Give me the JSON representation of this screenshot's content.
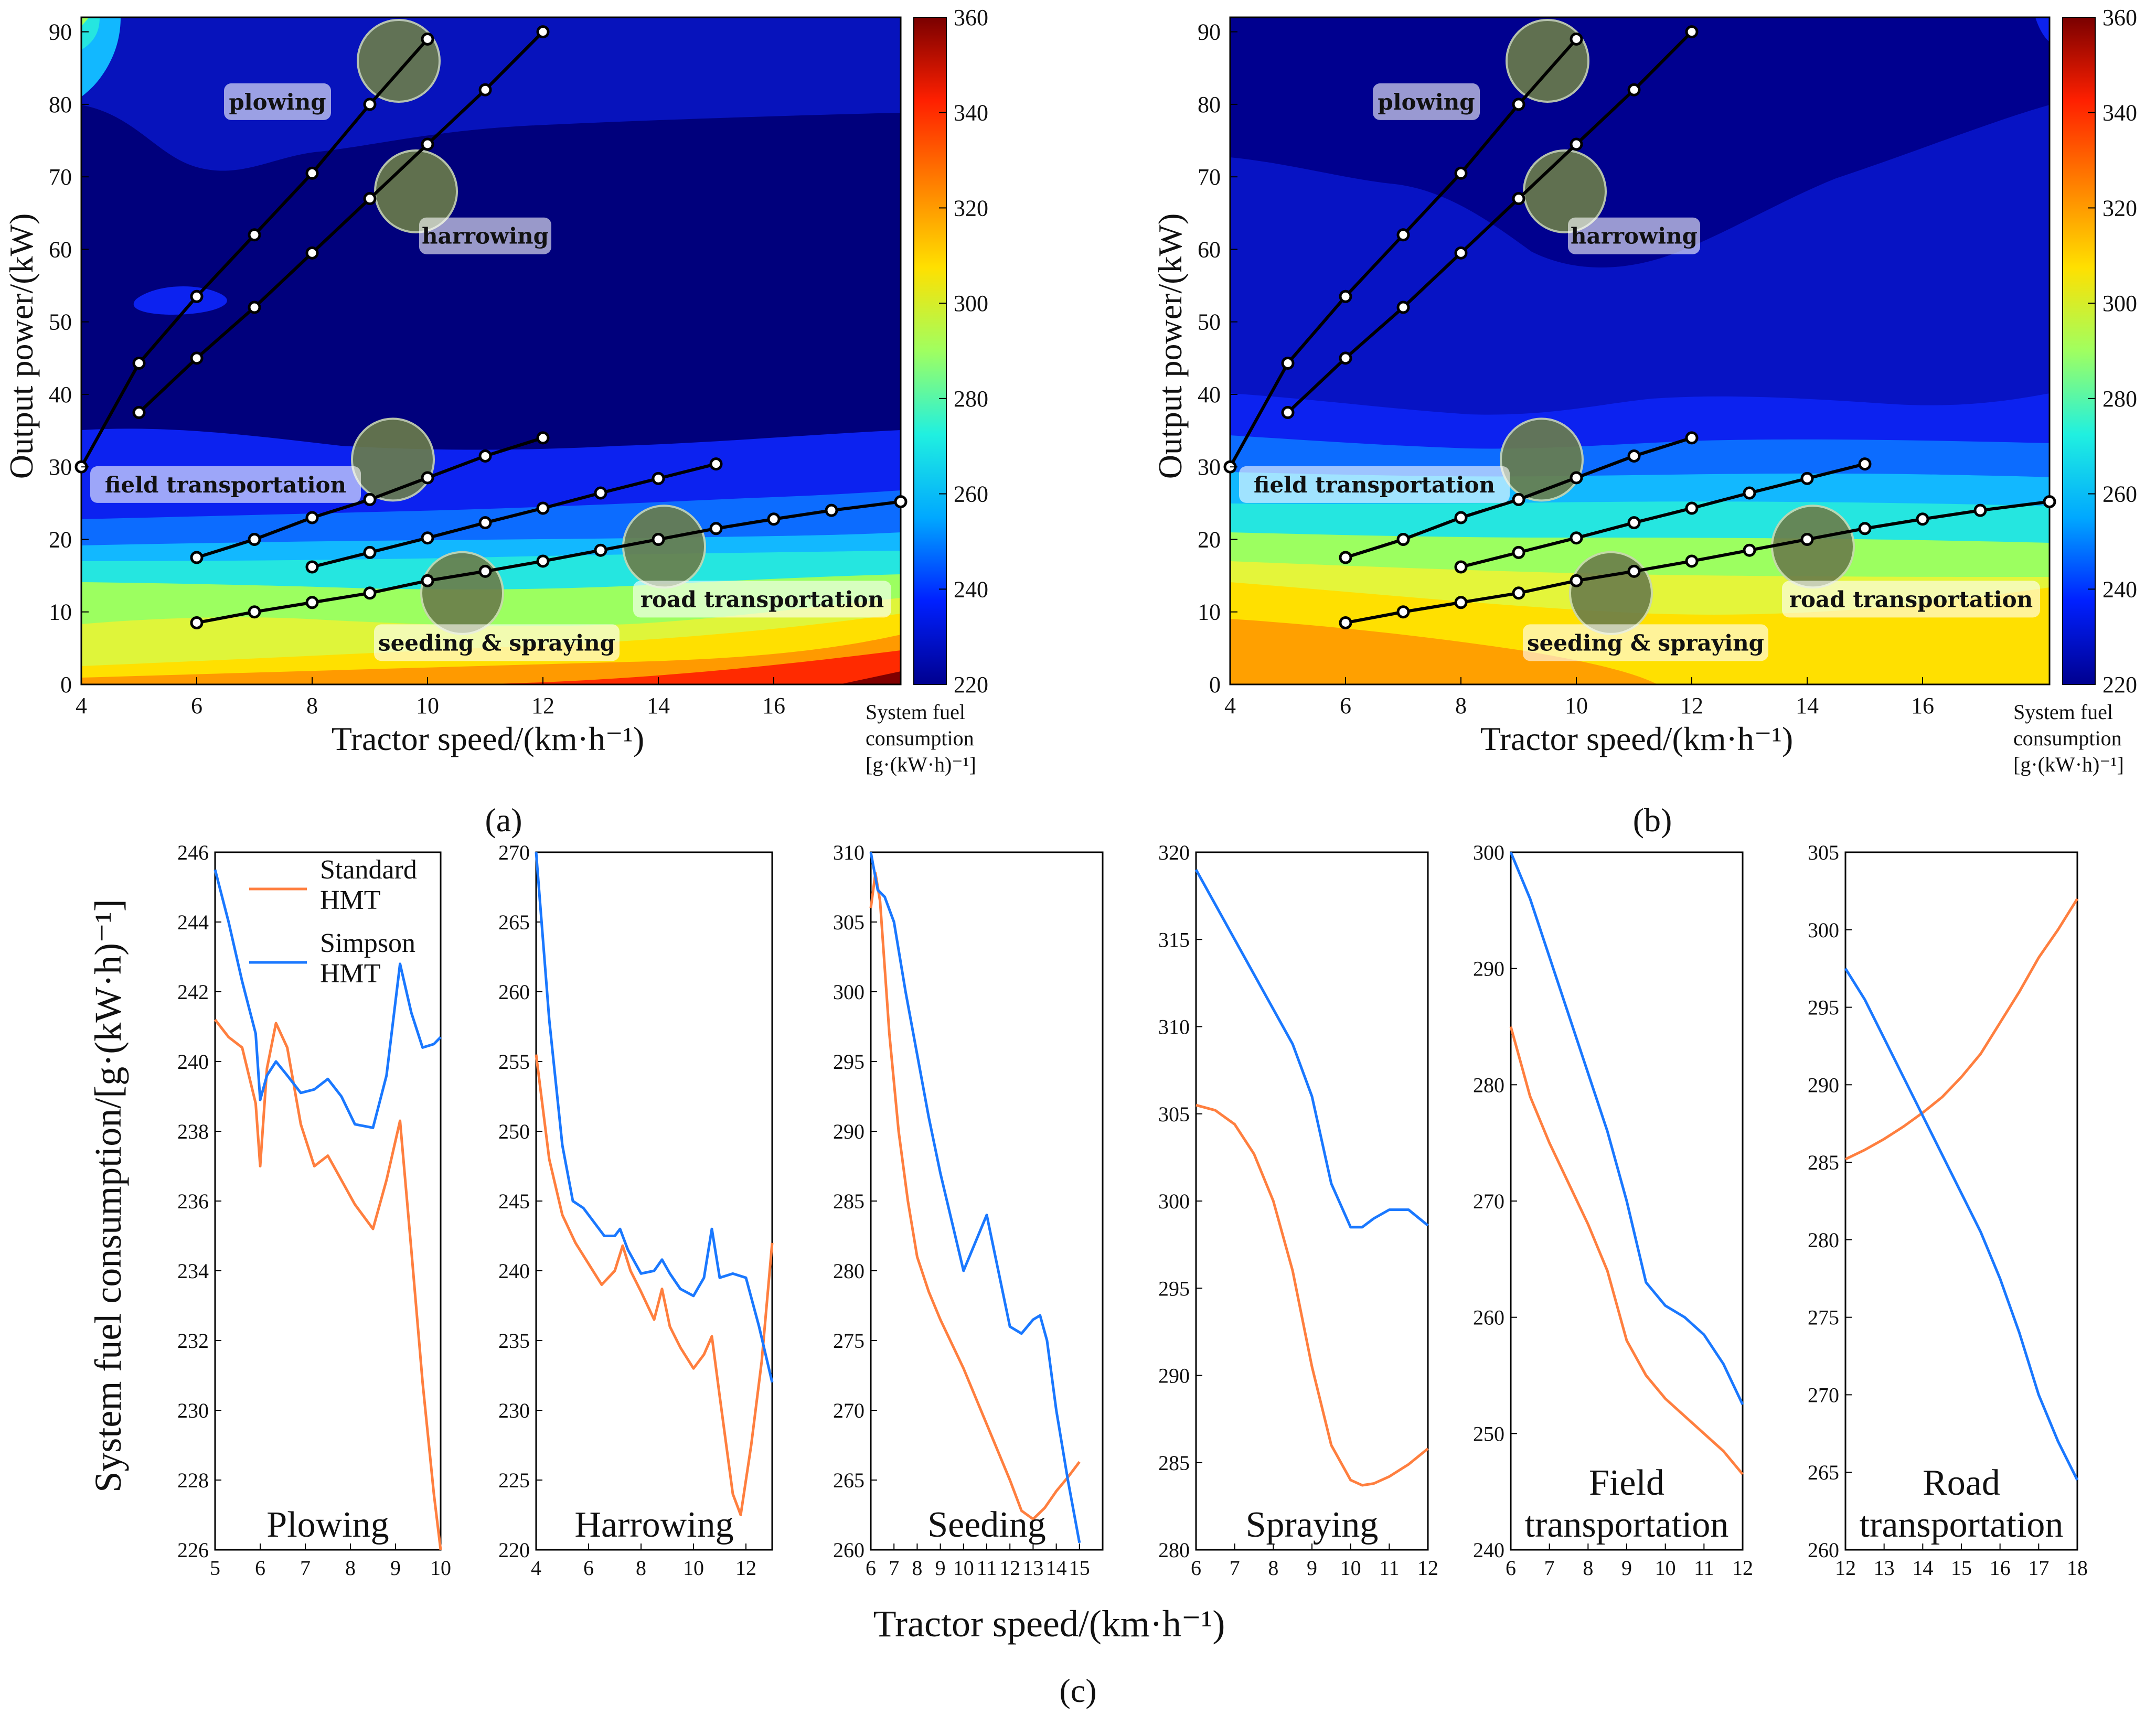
{
  "colorbar": {
    "ticks": [
      "220",
      "240",
      "260",
      "280",
      "300",
      "320",
      "340",
      "360"
    ],
    "title_lines": [
      "System fuel",
      "consumption",
      "[g·(kW·h)⁻¹]"
    ],
    "colors": [
      "#00008f",
      "#0020ff",
      "#00a8ff",
      "#20f0e0",
      "#a0ff60",
      "#ffe000",
      "#ff8000",
      "#ff2000",
      "#7a0000"
    ]
  },
  "panel_labels": {
    "a": "(a)",
    "b": "(b)",
    "c": "(c)"
  },
  "contour_plots": [
    {
      "id": "a",
      "xlabel": "Tractor speed/(km·h⁻¹)",
      "ylabel": "Output power/(kW)",
      "xticks": [
        "4",
        "6",
        "8",
        "10",
        "12",
        "14",
        "16"
      ],
      "yticks": [
        "0",
        "10",
        "20",
        "30",
        "40",
        "50",
        "60",
        "70",
        "80",
        "90"
      ],
      "xlim": [
        4,
        18.2
      ],
      "ylim": [
        0,
        92
      ],
      "field_levels": [
        "#00007c",
        "#0c22f0",
        "#0c6cff",
        "#12b8ff",
        "#25e6e0",
        "#9cff60",
        "#dff53a",
        "#ffe000",
        "#ff9a00",
        "#ff2a00",
        "#800000"
      ]
    },
    {
      "id": "b",
      "xlabel": "Tractor speed/(km·h⁻¹)",
      "ylabel": "Output power/(kW)",
      "xticks": [
        "4",
        "6",
        "8",
        "10",
        "12",
        "14",
        "16"
      ],
      "yticks": [
        "0",
        "10",
        "20",
        "30",
        "40",
        "50",
        "60",
        "70",
        "80",
        "90"
      ],
      "xlim": [
        4,
        18.2
      ],
      "ylim": [
        0,
        92
      ],
      "field_levels": [
        "#00008f",
        "#0c22f0",
        "#0c6cff",
        "#12b8ff",
        "#25e6e0",
        "#9cff60",
        "#e4f53a",
        "#ffe000",
        "#ffa000"
      ]
    }
  ],
  "operations": [
    {
      "name": "plowing",
      "points": [
        [
          4,
          30
        ],
        [
          5,
          44.3
        ],
        [
          6,
          53.5
        ],
        [
          7,
          62
        ],
        [
          8,
          70.5
        ],
        [
          9,
          80
        ],
        [
          10,
          89
        ]
      ]
    },
    {
      "name": "harrowing",
      "points": [
        [
          5,
          37.5
        ],
        [
          6,
          45
        ],
        [
          7,
          52
        ],
        [
          8,
          59.5
        ],
        [
          9,
          67
        ],
        [
          10,
          74.5
        ],
        [
          11,
          82
        ],
        [
          12,
          90
        ]
      ]
    },
    {
      "name": "field transportation",
      "points": [
        [
          6,
          17.5
        ],
        [
          7,
          20
        ],
        [
          8,
          23
        ],
        [
          9,
          25.5
        ],
        [
          10,
          28.5
        ],
        [
          11,
          31.5
        ],
        [
          12,
          34
        ]
      ]
    },
    {
      "name": "seeding & spraying",
      "points": [
        [
          8,
          16.2
        ],
        [
          9,
          18.2
        ],
        [
          10,
          20.2
        ],
        [
          11,
          22.3
        ],
        [
          12,
          24.3
        ],
        [
          13,
          26.4
        ],
        [
          14,
          28.4
        ],
        [
          15,
          30.4
        ]
      ]
    },
    {
      "name": "road transportation",
      "points": [
        [
          6,
          8.5
        ],
        [
          7,
          10
        ],
        [
          8,
          11.3
        ],
        [
          9,
          12.6
        ],
        [
          10,
          14.3
        ],
        [
          11,
          15.6
        ],
        [
          12,
          17
        ],
        [
          13,
          18.5
        ],
        [
          14,
          20
        ],
        [
          15,
          21.5
        ],
        [
          16,
          22.8
        ],
        [
          17,
          24
        ],
        [
          18.2,
          25.2
        ]
      ]
    }
  ],
  "chart_data": [
    {
      "type": "line",
      "title": "Plowing",
      "ylabel": "System fuel consumption/[g·(kW·h)⁻¹]",
      "xlabel": "Tractor speed/(km·h⁻¹)",
      "xlim": [
        5,
        10
      ],
      "ylim": [
        226,
        246
      ],
      "xticks": [
        "5",
        "6",
        "7",
        "8",
        "9",
        "10"
      ],
      "yticks": [
        "226",
        "228",
        "230",
        "232",
        "234",
        "236",
        "238",
        "240",
        "242",
        "244",
        "246"
      ],
      "series": [
        {
          "name": "Standard HMT",
          "color": "#ff7f3f",
          "x": [
            5,
            5.3,
            5.6,
            5.9,
            6,
            6.15,
            6.35,
            6.6,
            6.9,
            7.2,
            7.5,
            7.8,
            8.1,
            8.5,
            8.8,
            9.1,
            9.35,
            9.6,
            9.85,
            10
          ],
          "y": [
            241.2,
            240.7,
            240.4,
            238.8,
            237,
            239.8,
            241.1,
            240.4,
            238.2,
            237,
            237.3,
            236.6,
            235.9,
            235.2,
            236.6,
            238.3,
            234.6,
            230.8,
            227.6,
            226
          ]
        },
        {
          "name": "Simpson HMT",
          "color": "#1a78ff",
          "x": [
            5,
            5.3,
            5.6,
            5.9,
            6,
            6.15,
            6.35,
            6.6,
            6.9,
            7.2,
            7.5,
            7.8,
            8.1,
            8.5,
            8.8,
            9.1,
            9.35,
            9.6,
            9.85,
            10
          ],
          "y": [
            245.5,
            244,
            242.3,
            240.8,
            238.9,
            239.6,
            240,
            239.6,
            239.1,
            239.2,
            239.5,
            239,
            238.2,
            238.1,
            239.6,
            242.8,
            241.4,
            240.4,
            240.5,
            240.7
          ]
        }
      ]
    },
    {
      "type": "line",
      "title": "Harrowing",
      "xlim": [
        4,
        13
      ],
      "ylim": [
        220,
        270
      ],
      "xticks": [
        "4",
        "6",
        "8",
        "10",
        "12"
      ],
      "yticks": [
        "220",
        "225",
        "230",
        "235",
        "240",
        "245",
        "250",
        "255",
        "260",
        "265",
        "270"
      ],
      "series": [
        {
          "name": "Standard HMT",
          "color": "#ff7f3f",
          "x": [
            4,
            4.5,
            5,
            5.5,
            6,
            6.5,
            7,
            7.3,
            7.6,
            8,
            8.5,
            8.8,
            9.1,
            9.5,
            10,
            10.4,
            10.7,
            11,
            11.5,
            11.8,
            12.2,
            12.6,
            13
          ],
          "y": [
            255.5,
            248,
            244,
            242,
            240.5,
            239,
            240,
            241.8,
            240,
            238.5,
            236.5,
            238.7,
            236,
            234.5,
            233,
            234,
            235.3,
            231,
            224,
            222.5,
            227.5,
            233.5,
            242
          ]
        },
        {
          "name": "Simpson HMT",
          "color": "#1a78ff",
          "x": [
            4,
            4.5,
            5,
            5.4,
            5.8,
            6.2,
            6.6,
            7,
            7.2,
            7.5,
            8,
            8.5,
            8.8,
            9.1,
            9.5,
            10,
            10.4,
            10.7,
            11,
            11.5,
            12,
            12.5,
            13
          ],
          "y": [
            270,
            258,
            249,
            245,
            244.5,
            243.5,
            242.5,
            242.5,
            243,
            241.5,
            239.8,
            240,
            240.8,
            239.8,
            238.7,
            238.2,
            239.5,
            243,
            239.5,
            239.8,
            239.5,
            236,
            232
          ]
        }
      ]
    },
    {
      "type": "line",
      "title": "Seeding",
      "xlim": [
        6,
        16
      ],
      "ylim": [
        260,
        310
      ],
      "xticks": [
        "6",
        "7",
        "8",
        "9",
        "10",
        "11",
        "12",
        "13",
        "14",
        "15"
      ],
      "yticks": [
        "260",
        "265",
        "270",
        "275",
        "280",
        "285",
        "290",
        "295",
        "300",
        "305",
        "310"
      ],
      "series": [
        {
          "name": "Standard HMT",
          "color": "#ff7f3f",
          "x": [
            6,
            6.2,
            6.4,
            6.8,
            7.2,
            7.6,
            8,
            8.5,
            9,
            10,
            11,
            12,
            12.5,
            13,
            13.5,
            14,
            14.5,
            15
          ],
          "y": [
            306,
            308.5,
            306.5,
            297,
            290,
            285,
            281,
            278.5,
            276.5,
            273,
            269,
            265,
            262.8,
            262.2,
            263,
            264.2,
            265.2,
            266.3
          ]
        },
        {
          "name": "Simpson HMT",
          "color": "#1a78ff",
          "x": [
            6,
            6.3,
            6.6,
            7,
            7.5,
            8,
            8.5,
            9,
            10,
            11,
            12,
            12.5,
            13,
            13.3,
            13.6,
            14,
            14.5,
            15
          ],
          "y": [
            310,
            307.3,
            306.8,
            305,
            300,
            295.5,
            291,
            287,
            280,
            284,
            276,
            275.5,
            276.5,
            276.8,
            275,
            270,
            265,
            260.5
          ]
        }
      ]
    },
    {
      "type": "line",
      "title": "Spraying",
      "xlim": [
        6,
        12
      ],
      "ylim": [
        280,
        320
      ],
      "xticks": [
        "6",
        "7",
        "8",
        "9",
        "10",
        "11",
        "12"
      ],
      "yticks": [
        "280",
        "285",
        "290",
        "295",
        "300",
        "305",
        "310",
        "315",
        "320"
      ],
      "series": [
        {
          "name": "Standard HMT",
          "color": "#ff7f3f",
          "x": [
            6,
            6.5,
            7,
            7.5,
            8,
            8.5,
            9,
            9.5,
            10,
            10.3,
            10.6,
            11,
            11.5,
            12
          ],
          "y": [
            305.5,
            305.2,
            304.4,
            302.7,
            300,
            296,
            290.5,
            286,
            284,
            283.7,
            283.8,
            284.2,
            284.9,
            285.8
          ]
        },
        {
          "name": "Simpson HMT",
          "color": "#1a78ff",
          "x": [
            6,
            6.5,
            7,
            7.5,
            8,
            8.5,
            9,
            9.5,
            10,
            10.3,
            10.6,
            11,
            11.5,
            12
          ],
          "y": [
            319,
            317,
            315,
            313,
            311,
            309,
            306,
            301,
            298.5,
            298.5,
            299,
            299.5,
            299.5,
            298.6
          ]
        }
      ]
    },
    {
      "type": "line",
      "title": "Field transportation",
      "xlim": [
        6,
        12
      ],
      "ylim": [
        240,
        300
      ],
      "xticks": [
        "6",
        "7",
        "8",
        "9",
        "10",
        "11",
        "12"
      ],
      "yticks": [
        "240",
        "250",
        "260",
        "270",
        "280",
        "290",
        "300"
      ],
      "series": [
        {
          "name": "Standard HMT",
          "color": "#ff7f3f",
          "x": [
            6,
            6.5,
            7,
            7.5,
            8,
            8.5,
            9,
            9.5,
            10,
            10.5,
            11,
            11.5,
            12
          ],
          "y": [
            285,
            279,
            275,
            271.5,
            268,
            264,
            258,
            255,
            253,
            251.5,
            250,
            248.5,
            246.5
          ]
        },
        {
          "name": "Simpson HMT",
          "color": "#1a78ff",
          "x": [
            6,
            6.5,
            7,
            7.5,
            8,
            8.5,
            9,
            9.5,
            10,
            10.5,
            11,
            11.5,
            12
          ],
          "y": [
            300,
            296,
            291,
            286,
            281,
            276,
            270,
            263,
            261,
            260,
            258.5,
            256,
            252.5
          ]
        }
      ]
    },
    {
      "type": "line",
      "title": "Road transportation",
      "xlim": [
        12,
        18
      ],
      "ylim": [
        260,
        305
      ],
      "xticks": [
        "12",
        "13",
        "14",
        "15",
        "16",
        "17",
        "18"
      ],
      "yticks": [
        "260",
        "265",
        "270",
        "275",
        "280",
        "285",
        "290",
        "295",
        "300",
        "305"
      ],
      "series": [
        {
          "name": "Standard HMT",
          "color": "#ff7f3f",
          "x": [
            12,
            12.5,
            13,
            13.5,
            14,
            14.5,
            15,
            15.5,
            16,
            16.5,
            17,
            17.5,
            18
          ],
          "y": [
            285.2,
            285.8,
            286.5,
            287.3,
            288.2,
            289.2,
            290.5,
            292,
            294,
            296,
            298.2,
            300,
            302
          ]
        },
        {
          "name": "Simpson HMT",
          "color": "#1a78ff",
          "x": [
            12,
            12.5,
            13,
            13.5,
            14,
            14.5,
            15,
            15.5,
            16,
            16.5,
            17,
            17.5,
            18
          ],
          "y": [
            297.5,
            295.5,
            293,
            290.5,
            288,
            285.5,
            283,
            280.5,
            277.5,
            274,
            270,
            267,
            264.5
          ]
        }
      ]
    }
  ],
  "line_panels": {
    "ylabel": "System fuel consumption/[g·(kW·h)⁻¹]",
    "xlabel": "Tractor speed/(km·h⁻¹)",
    "titles": [
      [
        "Plowing"
      ],
      [
        "Harrowing"
      ],
      [
        "Seeding"
      ],
      [
        "Spraying"
      ],
      [
        "Field",
        "transportation"
      ],
      [
        "Road",
        "transportation"
      ]
    ]
  },
  "legend": [
    {
      "lines": [
        "Standard",
        "HMT"
      ],
      "color": "#ff7f3f"
    },
    {
      "lines": [
        "Simpson",
        "HMT"
      ],
      "color": "#1a78ff"
    }
  ]
}
